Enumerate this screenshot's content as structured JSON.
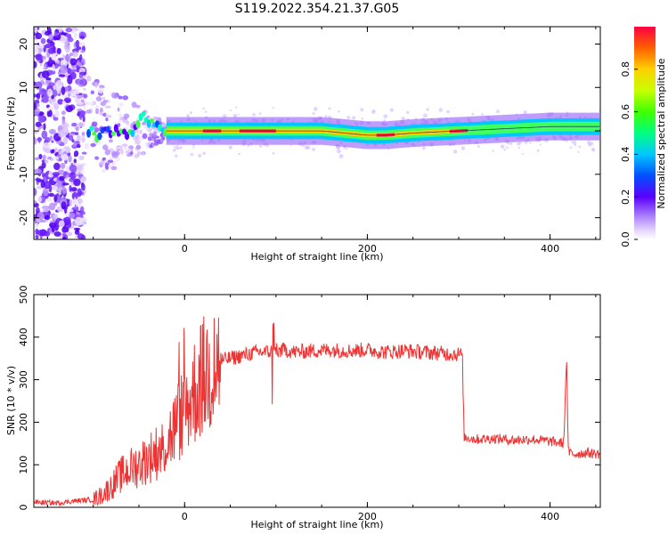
{
  "title": "S119.2022.354.21.37.G05",
  "chart_data": [
    {
      "type": "heatmap",
      "xlabel": "Height of straight line (km)",
      "ylabel": "Frequency (Hz)",
      "xlim": [
        -165,
        455
      ],
      "ylim": [
        -25,
        24
      ],
      "xticks": [
        0,
        200,
        400
      ],
      "yticks": [
        -20,
        -10,
        0,
        10,
        20
      ],
      "grid": false,
      "colorbar": {
        "label": "Normalized spectral amplitude",
        "range": [
          0,
          1
        ],
        "ticks": [
          "0.0",
          "0.2",
          "0.4",
          "0.6",
          "0.8"
        ],
        "colormap": "rainbow"
      },
      "ridge": {
        "x": [
          -100,
          -80,
          -60,
          -45,
          -30,
          -20,
          0,
          50,
          100,
          150,
          200,
          220,
          250,
          300,
          350,
          400,
          455
        ],
        "y": [
          -1,
          0,
          -1,
          3,
          1,
          0,
          0,
          0,
          0,
          0,
          -1,
          -1,
          -0.5,
          0,
          0.5,
          1,
          1
        ]
      }
    },
    {
      "type": "line",
      "xlabel": "Height of straight line (km)",
      "ylabel": "SNR (10 * v/v)",
      "xlim": [
        -165,
        455
      ],
      "ylim": [
        0,
        500
      ],
      "xticks": [
        0,
        200,
        400
      ],
      "yticks": [
        0,
        100,
        200,
        300,
        400,
        500
      ],
      "grid": false,
      "color": "#ee3333",
      "series": [
        {
          "x": [
            -165,
            -140,
            -120,
            -100,
            -90,
            -80,
            -70,
            -60,
            -50,
            -40,
            -30,
            -20,
            -10,
            0,
            10,
            20,
            30,
            40,
            50,
            60,
            70,
            80,
            90,
            100,
            110,
            120,
            140,
            160,
            180,
            200,
            220,
            240,
            260,
            280,
            300,
            304,
            306,
            320,
            340,
            360,
            380,
            400,
            410,
            415,
            418,
            420,
            425,
            440,
            455
          ],
          "y": [
            12,
            10,
            15,
            18,
            30,
            50,
            75,
            90,
            100,
            115,
            130,
            150,
            190,
            230,
            270,
            305,
            325,
            345,
            350,
            355,
            360,
            365,
            365,
            368,
            370,
            365,
            368,
            370,
            368,
            370,
            365,
            368,
            365,
            362,
            360,
            358,
            165,
            160,
            162,
            158,
            160,
            155,
            152,
            150,
            355,
            130,
            125,
            128,
            125
          ]
        }
      ]
    }
  ]
}
